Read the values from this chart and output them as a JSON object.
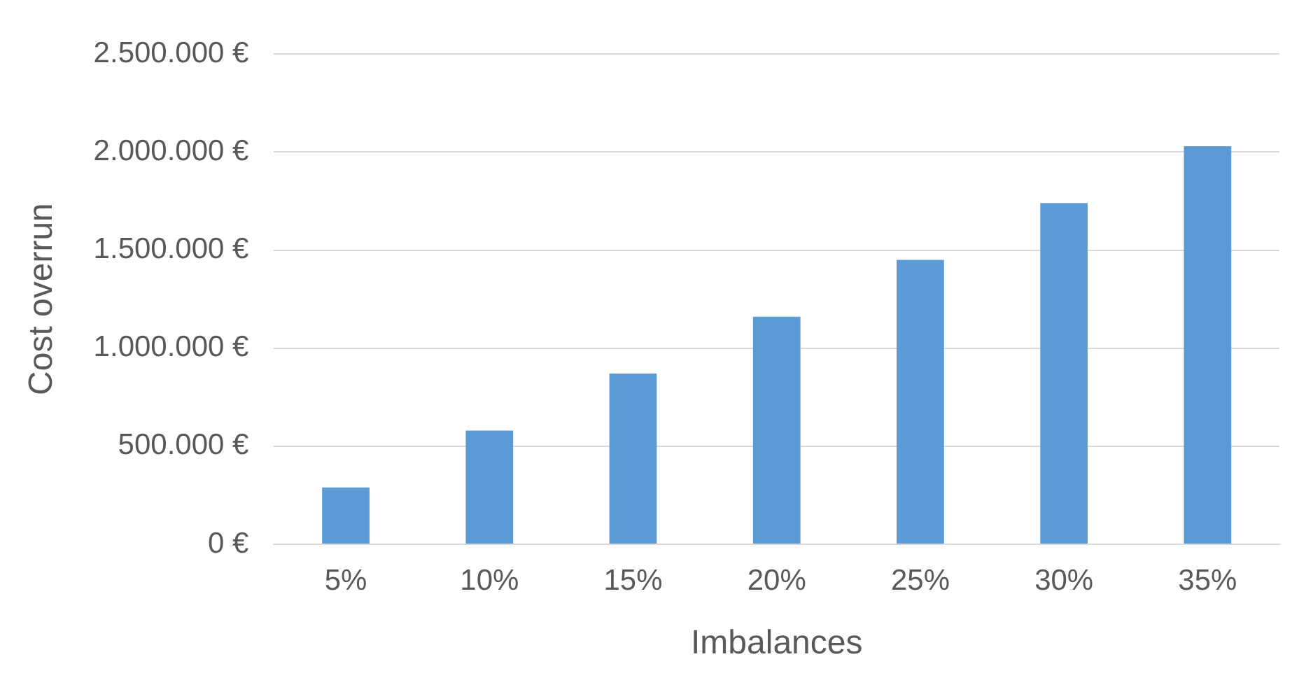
{
  "chart_data": {
    "type": "bar",
    "xlabel": "Imbalances",
    "ylabel": "Cost overrun",
    "categories": [
      "5%",
      "10%",
      "15%",
      "20%",
      "25%",
      "30%",
      "35%"
    ],
    "values": [
      290000,
      580000,
      870000,
      1160000,
      1450000,
      1740000,
      2030000
    ],
    "color": "#5b9bd5",
    "ylim": [
      0,
      2500000
    ],
    "yticks": [
      {
        "value": 0,
        "label": "0 €"
      },
      {
        "value": 500000,
        "label": "500.000 €"
      },
      {
        "value": 1000000,
        "label": "1.000.000 €"
      },
      {
        "value": 1500000,
        "label": "1.500.000 €"
      },
      {
        "value": 2000000,
        "label": "2.000.000 €"
      },
      {
        "value": 2500000,
        "label": "2.500.000 €"
      }
    ],
    "grid": "y",
    "legend": false
  }
}
